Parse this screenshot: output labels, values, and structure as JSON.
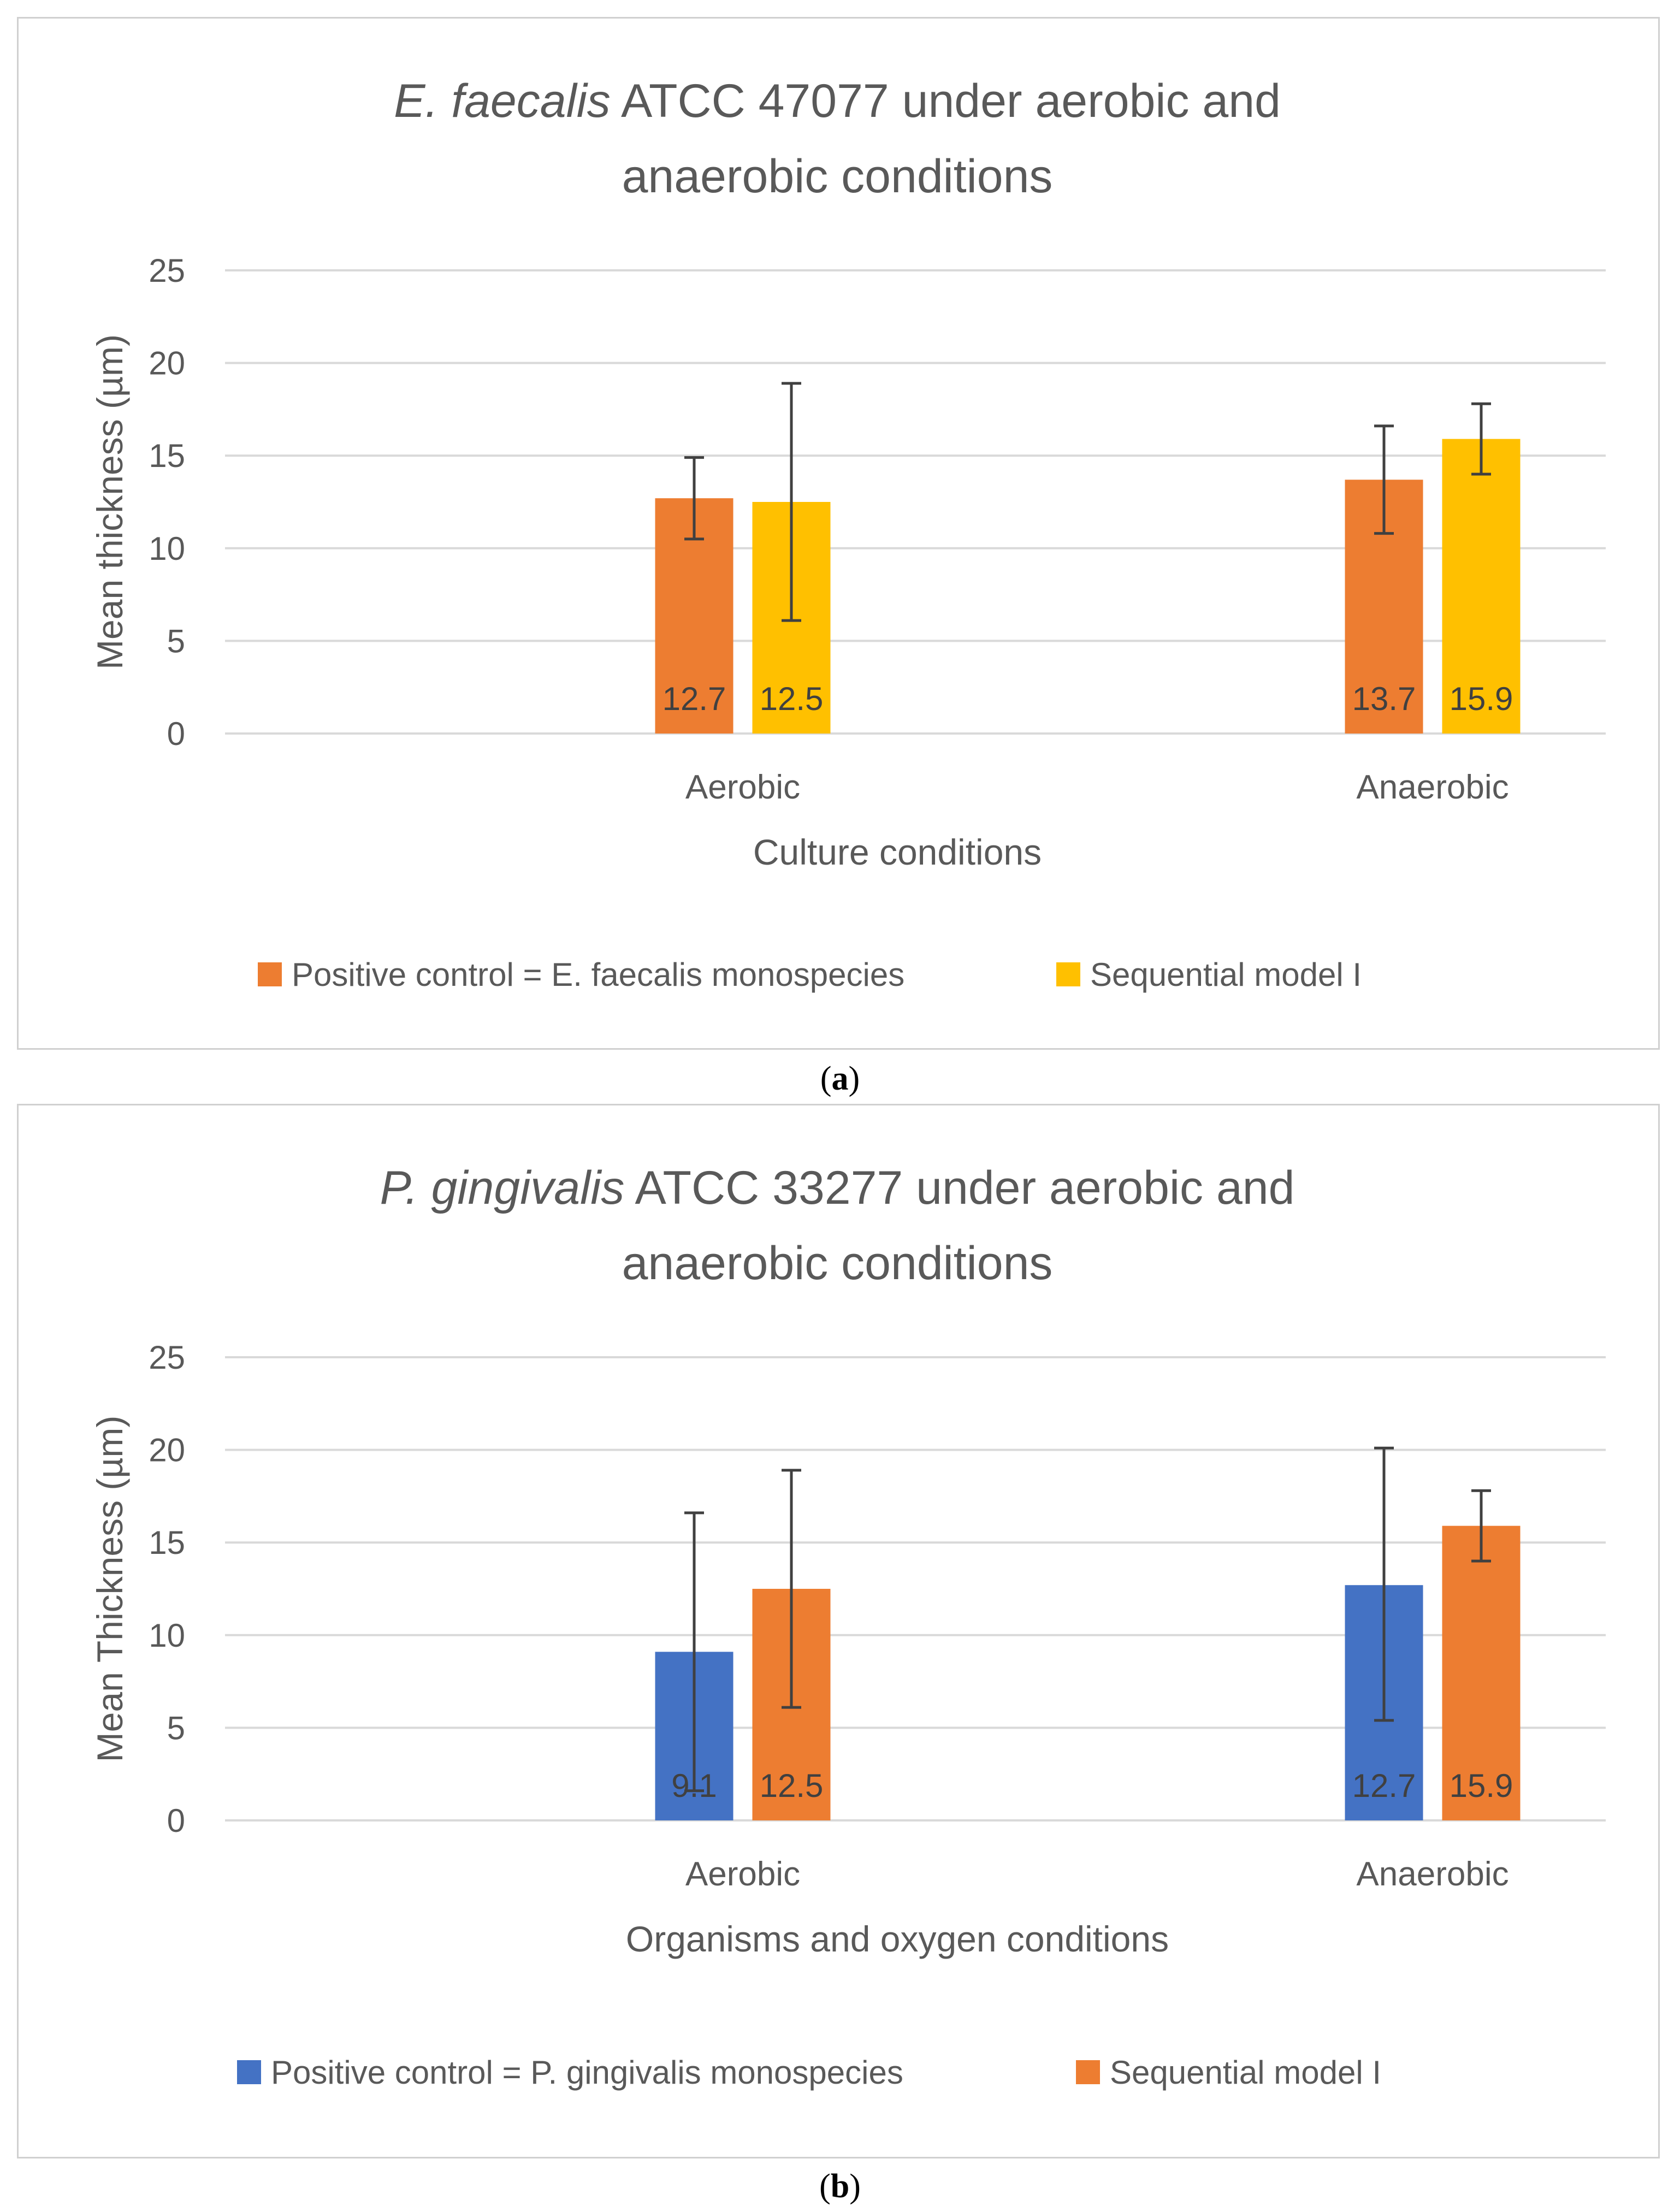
{
  "chart_data": [
    {
      "type": "bar",
      "title_italic": "E. faecalis",
      "title_rest_line1": " ATCC 47077 under aerobic and",
      "title_line2": "anaerobic conditions",
      "xlabel": "Culture conditions",
      "ylabel": "Mean thickness (µm)",
      "ylim": [
        0,
        25
      ],
      "yticks": [
        0,
        5,
        10,
        15,
        20,
        25
      ],
      "grid": true,
      "legend_position": "bottom",
      "categories": [
        "Aerobic",
        "Anaerobic"
      ],
      "series": [
        {
          "name": "Positive control = E. faecalis monospecies",
          "color": "#ED7D31",
          "values": [
            12.7,
            13.7
          ],
          "labels": [
            "12.7",
            "13.7"
          ],
          "err_low": [
            10.5,
            10.8
          ],
          "err_high": [
            14.9,
            16.6
          ]
        },
        {
          "name": "Sequential model I",
          "color": "#FFC000",
          "values": [
            12.5,
            15.9
          ],
          "labels": [
            "12.5",
            "15.9"
          ],
          "err_low": [
            6.1,
            14.0
          ],
          "err_high": [
            18.9,
            17.8
          ]
        }
      ]
    },
    {
      "type": "bar",
      "title_italic": "P. gingivalis",
      "title_rest_line1": " ATCC 33277 under aerobic and",
      "title_line2": "anaerobic conditions",
      "xlabel": "Organisms and oxygen conditions",
      "ylabel": "Mean  Thickness (µm)",
      "ylim": [
        0,
        25
      ],
      "yticks": [
        0,
        5,
        10,
        15,
        20,
        25
      ],
      "grid": true,
      "legend_position": "bottom",
      "categories": [
        "Aerobic",
        "Anaerobic"
      ],
      "series": [
        {
          "name": "Positive control = P. gingivalis monospecies",
          "color": "#4472C4",
          "values": [
            9.1,
            12.7
          ],
          "labels": [
            "9.1",
            "12.7"
          ],
          "err_low": [
            1.6,
            5.4
          ],
          "err_high": [
            16.6,
            20.1
          ]
        },
        {
          "name": "Sequential model I",
          "color": "#ED7D31",
          "values": [
            12.5,
            15.9
          ],
          "labels": [
            "12.5",
            "15.9"
          ],
          "err_low": [
            6.1,
            14.0
          ],
          "err_high": [
            18.9,
            17.8
          ]
        }
      ]
    }
  ],
  "captions": [
    {
      "open": "(",
      "letter": "a",
      "close": ")"
    },
    {
      "open": "(",
      "letter": "b",
      "close": ")"
    }
  ]
}
